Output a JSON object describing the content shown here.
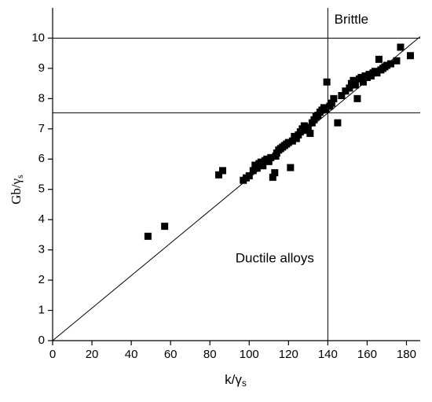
{
  "chart_data": {
    "type": "scatter",
    "x_label": {
      "text": "k/γ",
      "subscript": "s"
    },
    "y_label": {
      "text": "Gb/γ",
      "subscript": "s"
    },
    "annotations": [
      {
        "text": "Brittle",
        "x": 152,
        "y": 10.6
      },
      {
        "text": "Ductile alloys",
        "x": 113,
        "y": 2.7
      }
    ],
    "xlim": [
      0,
      187
    ],
    "ylim": [
      0,
      11
    ],
    "xticks": [
      0,
      20,
      40,
      60,
      80,
      100,
      120,
      140,
      160,
      180
    ],
    "yticks": [
      0,
      1,
      2,
      3,
      4,
      5,
      6,
      7,
      8,
      9,
      10
    ],
    "color": "#000000",
    "reference_lines": [
      {
        "x": [
          140,
          140
        ],
        "y": [
          0,
          11
        ]
      },
      {
        "x": [
          0,
          187
        ],
        "y": [
          10,
          10
        ]
      },
      {
        "x": [
          0,
          187
        ],
        "y": [
          7.53,
          7.53
        ]
      },
      {
        "x": [
          0,
          187
        ],
        "y": [
          0,
          10.05
        ]
      }
    ],
    "x": [
      48.5,
      57,
      84.5,
      86.5,
      97,
      98.5,
      100,
      102,
      103,
      104,
      105,
      106,
      107,
      108,
      109,
      110,
      111,
      112,
      113,
      113.5,
      114,
      115,
      116,
      117,
      118,
      119,
      120,
      121,
      122,
      123,
      124,
      125,
      126,
      127,
      128,
      129,
      130,
      131,
      132,
      133,
      134,
      135,
      136,
      137,
      138,
      139,
      139.5,
      141,
      142,
      143,
      145,
      147,
      149,
      151,
      152,
      153,
      154,
      155,
      156,
      157,
      158,
      159,
      160,
      161,
      162,
      163,
      164,
      165,
      166,
      167,
      168,
      169,
      170,
      172,
      175,
      177,
      182
    ],
    "values": [
      3.45,
      3.78,
      5.48,
      5.62,
      5.3,
      5.38,
      5.45,
      5.62,
      5.8,
      5.7,
      5.85,
      5.9,
      5.78,
      5.95,
      6.0,
      5.92,
      6.05,
      5.4,
      5.55,
      6.1,
      6.2,
      6.3,
      6.35,
      6.4,
      6.45,
      6.5,
      6.55,
      5.72,
      6.6,
      6.75,
      6.68,
      6.8,
      6.9,
      7.0,
      7.1,
      6.95,
      7.05,
      6.85,
      7.2,
      7.3,
      7.4,
      7.45,
      7.55,
      7.62,
      7.7,
      7.65,
      8.55,
      7.75,
      7.85,
      8.0,
      7.2,
      8.1,
      8.25,
      8.35,
      8.5,
      8.6,
      8.45,
      8.0,
      8.65,
      8.7,
      8.55,
      8.75,
      8.7,
      8.8,
      8.75,
      8.85,
      8.9,
      8.85,
      9.3,
      8.95,
      9.0,
      9.05,
      9.1,
      9.15,
      9.25,
      9.7,
      9.42
    ]
  }
}
